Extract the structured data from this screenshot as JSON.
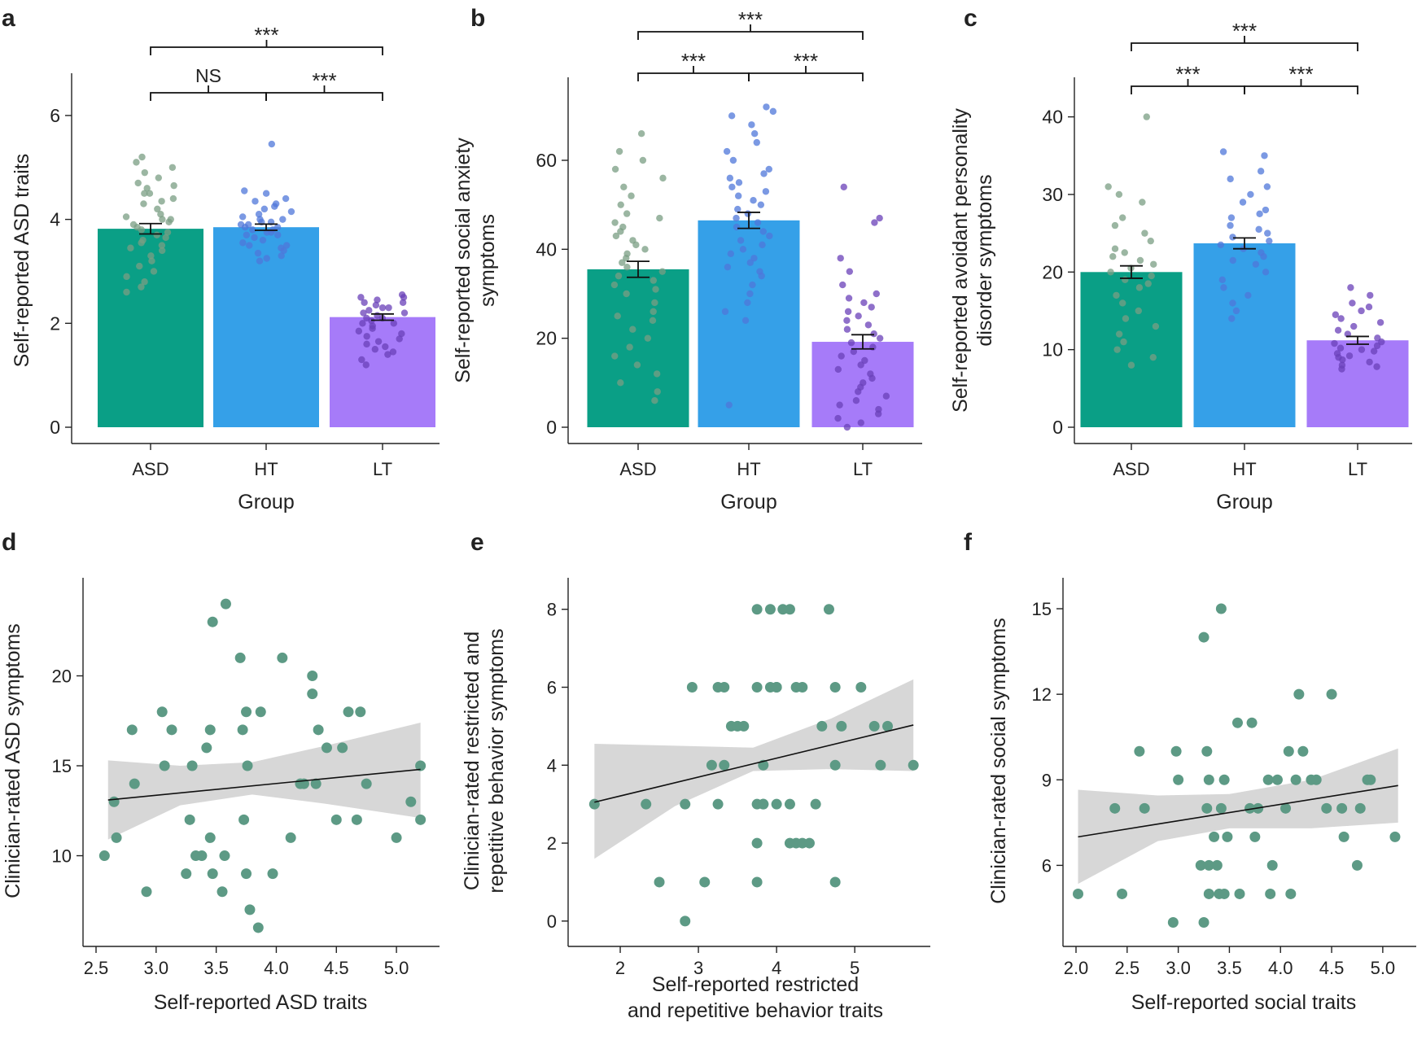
{
  "colors": {
    "ASD": "#0a9f86",
    "HT": "#35a0e8",
    "LT": "#a67bf9",
    "dot_ASD": "#7a9e83",
    "dot_HT": "#4f77d9",
    "dot_LT": "#6a40b8",
    "scatter": "#5d9a85",
    "band": "#d7d7d7",
    "line": "#111111",
    "axis": "#222222"
  },
  "chart_data": [
    {
      "panel": "a",
      "type": "bar",
      "title": "",
      "xlabel": "Group",
      "ylabel": "Self-reported ASD traits",
      "categories": [
        "ASD",
        "HT",
        "LT"
      ],
      "values": [
        3.82,
        3.85,
        2.12
      ],
      "errors": [
        0.1,
        0.06,
        0.06
      ],
      "ylim": [
        0,
        6.5
      ],
      "yticks": [
        0,
        2,
        4,
        6
      ],
      "points": {
        "ASD": [
          5.2,
          5.1,
          5.0,
          4.9,
          4.8,
          4.7,
          4.65,
          4.6,
          4.5,
          4.5,
          4.4,
          4.35,
          4.3,
          4.2,
          4.1,
          4.05,
          4.0,
          4.0,
          3.95,
          3.9,
          3.85,
          3.8,
          3.75,
          3.7,
          3.65,
          3.6,
          3.55,
          3.5,
          3.45,
          3.4,
          3.3,
          3.2,
          3.1,
          3.0,
          2.9,
          2.8,
          2.7,
          2.6
        ],
        "HT": [
          5.45,
          4.55,
          4.5,
          4.4,
          4.35,
          4.3,
          4.25,
          4.2,
          4.15,
          4.1,
          4.05,
          4.0,
          4.0,
          3.95,
          3.95,
          3.9,
          3.9,
          3.85,
          3.85,
          3.8,
          3.8,
          3.75,
          3.75,
          3.7,
          3.7,
          3.65,
          3.6,
          3.55,
          3.5,
          3.5,
          3.45,
          3.4,
          3.35,
          3.3,
          3.25,
          3.2
        ],
        "LT": [
          2.55,
          2.5,
          2.5,
          2.45,
          2.4,
          2.4,
          2.35,
          2.3,
          2.3,
          2.25,
          2.2,
          2.2,
          2.15,
          2.1,
          2.1,
          2.05,
          2.0,
          2.0,
          1.95,
          1.9,
          1.85,
          1.8,
          1.75,
          1.7,
          1.65,
          1.6,
          1.55,
          1.5,
          1.45,
          1.4,
          1.3,
          1.2
        ]
      },
      "comparisons": [
        {
          "from": "ASD",
          "to": "HT",
          "label": "NS"
        },
        {
          "from": "HT",
          "to": "LT",
          "label": "***"
        },
        {
          "from": "ASD",
          "to": "LT",
          "label": "***"
        }
      ]
    },
    {
      "panel": "b",
      "type": "bar",
      "title": "",
      "xlabel": "Group",
      "ylabel": "Self-reported social anxiety symptoms",
      "ylabel_lines": [
        "Self-reported social anxiety",
        "symptoms"
      ],
      "categories": [
        "ASD",
        "HT",
        "LT"
      ],
      "values": [
        35.5,
        46.5,
        19.2
      ],
      "errors": [
        1.8,
        1.8,
        1.6
      ],
      "ylim": [
        0,
        75
      ],
      "yticks": [
        0,
        20,
        40,
        60
      ],
      "points": {
        "ASD": [
          66,
          62,
          60,
          58,
          56,
          54,
          52,
          50,
          48,
          47,
          46,
          45,
          44,
          43,
          42,
          41,
          40,
          39,
          38,
          37,
          36,
          35,
          34,
          33,
          32,
          31,
          30,
          28,
          26,
          25,
          24,
          22,
          20,
          18,
          16,
          14,
          12,
          10,
          8,
          6
        ],
        "HT": [
          72,
          71,
          70,
          68,
          66,
          64,
          62,
          60,
          58,
          57,
          56,
          55,
          54,
          53,
          52,
          51,
          50,
          49,
          48,
          47,
          46,
          45,
          44,
          43,
          42,
          41,
          40,
          39,
          38,
          37,
          36,
          35,
          34,
          32,
          30,
          28,
          26,
          24,
          5
        ],
        "LT": [
          54,
          47,
          46,
          38,
          35,
          32,
          30,
          29,
          28,
          27,
          26,
          25,
          24,
          23,
          22,
          21,
          20,
          19,
          18,
          17,
          16,
          15,
          14,
          13,
          12,
          11,
          10,
          9,
          8,
          7,
          6,
          5,
          4,
          3,
          2,
          1,
          0
        ]
      },
      "comparisons": [
        {
          "from": "ASD",
          "to": "HT",
          "label": "***"
        },
        {
          "from": "HT",
          "to": "LT",
          "label": "***"
        },
        {
          "from": "ASD",
          "to": "LT",
          "label": "***"
        }
      ]
    },
    {
      "panel": "c",
      "type": "bar",
      "title": "",
      "xlabel": "Group",
      "ylabel": "Self-reported avoidant personality disorder symptoms",
      "ylabel_lines": [
        "Self-reported avoidant personality",
        "disorder symptoms"
      ],
      "categories": [
        "ASD",
        "HT",
        "LT"
      ],
      "values": [
        20.0,
        23.7,
        11.2
      ],
      "errors": [
        0.8,
        0.7,
        0.5
      ],
      "ylim": [
        0,
        43
      ],
      "yticks": [
        0,
        10,
        20,
        30,
        40
      ],
      "points": {
        "ASD": [
          40,
          31,
          30,
          29,
          27,
          26,
          25,
          24,
          23,
          22.5,
          22,
          21.5,
          21,
          20.5,
          20,
          19.5,
          19,
          18.5,
          18,
          17,
          16,
          15,
          14,
          13,
          12,
          11,
          10,
          9,
          8
        ],
        "HT": [
          35.5,
          35,
          33,
          32,
          31,
          30,
          29,
          28,
          27.5,
          27,
          26,
          25.5,
          25,
          24.5,
          24,
          23.5,
          23,
          22.5,
          22,
          21.5,
          21,
          20,
          19,
          18,
          17,
          16,
          15,
          14
        ],
        "LT": [
          18,
          17,
          16,
          15.5,
          15,
          14.5,
          14,
          13.5,
          13,
          12.5,
          12,
          11.5,
          11,
          10.8,
          10.5,
          10.2,
          10,
          9.8,
          9.5,
          9.2,
          9,
          8.7,
          8.4,
          8,
          7.8,
          7.5
        ]
      },
      "comparisons": [
        {
          "from": "ASD",
          "to": "HT",
          "label": "***"
        },
        {
          "from": "HT",
          "to": "LT",
          "label": "***"
        },
        {
          "from": "ASD",
          "to": "LT",
          "label": "***"
        }
      ]
    },
    {
      "panel": "d",
      "type": "scatter",
      "title": "",
      "xlabel": "Self-reported ASD traits",
      "ylabel": "Clinician-rated ASD symptoms",
      "xlim": [
        2.5,
        5.25
      ],
      "ylim": [
        5.5,
        25
      ],
      "xticks": [
        2.5,
        3.0,
        3.5,
        4.0,
        4.5,
        5.0
      ],
      "xtick_labels": [
        "2.5",
        "3.0",
        "3.5",
        "4.0",
        "4.5",
        "5.0"
      ],
      "yticks": [
        10,
        15,
        20
      ],
      "x": [
        2.57,
        2.65,
        2.67,
        2.8,
        2.82,
        2.92,
        3.05,
        3.07,
        3.13,
        3.25,
        3.28,
        3.3,
        3.33,
        3.38,
        3.42,
        3.45,
        3.45,
        3.47,
        3.47,
        3.55,
        3.57,
        3.58,
        3.7,
        3.72,
        3.73,
        3.75,
        3.75,
        3.76,
        3.78,
        3.85,
        3.87,
        3.97,
        4.05,
        4.12,
        4.2,
        4.23,
        4.3,
        4.3,
        4.33,
        4.35,
        4.42,
        4.5,
        4.55,
        4.6,
        4.67,
        4.7,
        4.75,
        5.0,
        5.12,
        5.2,
        5.2
      ],
      "y": [
        10,
        13,
        11,
        17,
        14,
        8,
        18,
        15,
        17,
        9,
        12,
        15,
        10,
        10,
        16,
        17,
        11,
        9,
        23,
        8,
        10,
        24,
        21,
        17,
        12,
        18,
        9,
        15,
        7,
        6,
        18,
        9,
        21,
        11,
        14,
        14,
        20,
        19,
        14,
        17,
        16,
        12,
        16,
        18,
        12,
        18,
        14,
        11,
        13,
        12,
        15
      ],
      "fit": {
        "x": [
          2.6,
          5.2
        ],
        "y": [
          13.1,
          14.8
        ]
      },
      "band": {
        "x": [
          2.6,
          3.2,
          3.8,
          4.4,
          5.2
        ],
        "upper": [
          15.3,
          15.0,
          15.2,
          16.1,
          17.4
        ],
        "lower": [
          10.9,
          12.8,
          13.4,
          12.9,
          12.1
        ]
      }
    },
    {
      "panel": "e",
      "type": "scatter",
      "title": "",
      "xlabel": "Self-reported restricted and repetitive behavior traits",
      "ylabel": "Clinician-rated restricted and repetitive behavior symptoms",
      "xlabel_lines": [
        "Self-reported restricted",
        "and repetitive behavior traits"
      ],
      "ylabel_lines": [
        "Clinician-rated restricted and",
        "repetitive behavior symptoms"
      ],
      "xlim": [
        1.5,
        5.8
      ],
      "ylim": [
        -0.4,
        8.6
      ],
      "xticks": [
        2,
        3,
        4,
        5
      ],
      "xtick_labels": [
        "2",
        "3",
        "4",
        "5"
      ],
      "yticks": [
        0,
        2,
        4,
        6,
        8
      ],
      "x": [
        1.67,
        2.33,
        2.5,
        2.83,
        2.83,
        2.92,
        3.08,
        3.17,
        3.25,
        3.25,
        3.33,
        3.33,
        3.42,
        3.5,
        3.58,
        3.75,
        3.75,
        3.75,
        3.75,
        3.75,
        3.83,
        3.83,
        3.83,
        3.92,
        3.92,
        4.0,
        4.0,
        4.0,
        4.08,
        4.17,
        4.17,
        4.17,
        4.25,
        4.25,
        4.33,
        4.33,
        4.42,
        4.5,
        4.58,
        4.67,
        4.75,
        4.75,
        4.75,
        4.83,
        5.08,
        5.25,
        5.33,
        5.42,
        5.75
      ],
      "y": [
        3,
        3,
        1,
        3,
        0,
        6,
        1,
        4,
        3,
        6,
        6,
        4,
        5,
        5,
        5,
        6,
        8,
        3,
        2,
        1,
        3,
        3,
        4,
        6,
        8,
        6,
        3,
        6,
        8,
        2,
        3,
        8,
        2,
        6,
        2,
        6,
        2,
        3,
        5,
        8,
        6,
        1,
        4,
        5,
        6,
        5,
        4,
        5,
        4
      ],
      "fit": {
        "x": [
          1.67,
          5.75
        ],
        "y": [
          3.05,
          5.03
        ]
      },
      "band": {
        "x": [
          1.67,
          2.7,
          3.7,
          4.7,
          5.75
        ],
        "upper": [
          4.55,
          4.5,
          4.45,
          5.2,
          6.2
        ],
        "lower": [
          1.6,
          2.95,
          3.85,
          3.9,
          3.85
        ]
      }
    },
    {
      "panel": "f",
      "type": "scatter",
      "title": "",
      "xlabel": "Self-reported social traits",
      "ylabel": "Clinician-rated social symptoms",
      "xlim": [
        2.0,
        5.2
      ],
      "ylim": [
        3.5,
        15.8
      ],
      "xticks": [
        2.0,
        2.5,
        3.0,
        3.5,
        4.0,
        4.5,
        5.0
      ],
      "xtick_labels": [
        "2.0",
        "2.5",
        "3.0",
        "3.5",
        "4.0",
        "4.5",
        "5.0"
      ],
      "yticks": [
        6,
        9,
        12,
        15
      ],
      "x": [
        2.02,
        2.38,
        2.45,
        2.62,
        2.67,
        2.95,
        2.98,
        3.0,
        3.22,
        3.25,
        3.25,
        3.28,
        3.28,
        3.3,
        3.3,
        3.3,
        3.35,
        3.38,
        3.4,
        3.42,
        3.42,
        3.45,
        3.45,
        3.48,
        3.58,
        3.6,
        3.7,
        3.72,
        3.75,
        3.78,
        3.88,
        3.9,
        3.92,
        3.97,
        4.05,
        4.08,
        4.1,
        4.15,
        4.18,
        4.22,
        4.3,
        4.35,
        4.45,
        4.5,
        4.6,
        4.62,
        4.75,
        4.78,
        4.85,
        4.88,
        5.12
      ],
      "y": [
        5,
        8,
        5,
        10,
        8,
        4,
        10,
        9,
        6,
        14,
        4,
        8,
        10,
        9,
        6,
        5,
        7,
        6,
        5,
        8,
        15,
        5,
        9,
        7,
        11,
        5,
        8,
        11,
        7,
        8,
        9,
        5,
        6,
        9,
        8,
        10,
        5,
        9,
        12,
        10,
        9,
        9,
        8,
        12,
        8,
        7,
        6,
        8,
        9,
        9,
        7
      ],
      "fit": {
        "x": [
          2.02,
          5.15
        ],
        "y": [
          7.0,
          8.8
        ]
      },
      "band": {
        "x": [
          2.02,
          2.8,
          3.5,
          4.3,
          5.15
        ],
        "upper": [
          8.65,
          8.45,
          8.5,
          9.0,
          10.1
        ],
        "lower": [
          5.35,
          6.85,
          7.3,
          7.3,
          7.5
        ]
      }
    }
  ]
}
